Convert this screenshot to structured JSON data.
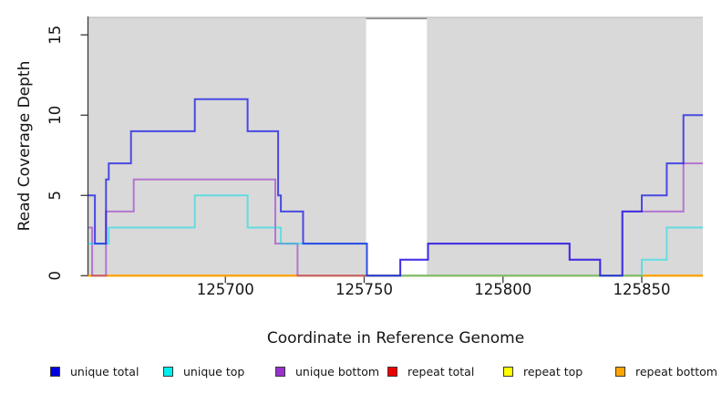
{
  "chart_data": {
    "type": "line",
    "subtype": "step-post",
    "title": "",
    "xlabel": "Coordinate in Reference Genome",
    "ylabel": "Read Coverage Depth",
    "xlim": [
      125650.5,
      125872
    ],
    "ylim": [
      0,
      16.15
    ],
    "xticks": [
      125700,
      125750,
      125800,
      125850
    ],
    "yticks": [
      0,
      5,
      10,
      15
    ],
    "grid": false,
    "background_color": "#ffffff",
    "shaded_region_color": "#d9d9d9",
    "shaded_regions": [
      [
        125650.5,
        125750.7
      ],
      [
        125772.6,
        125872
      ]
    ],
    "gap_region": [
      125750.7,
      125772.6
    ],
    "series": [
      {
        "name": "repeat total",
        "color": "#e60000",
        "opacity": 0.9,
        "points": [
          [
            125650.5,
            0
          ]
        ]
      },
      {
        "name": "repeat top",
        "color": "#f5f500",
        "opacity": 0.95,
        "points": [
          [
            125650.5,
            0
          ]
        ]
      },
      {
        "name": "repeat bottom",
        "color": "#ff9d00",
        "opacity": 0.95,
        "points": [
          [
            125650.5,
            0
          ]
        ]
      },
      {
        "name": "unique bottom",
        "color": "#9932cc",
        "opacity": 0.6,
        "points": [
          [
            125650.5,
            3
          ],
          [
            125652,
            0
          ],
          [
            125657,
            4
          ],
          [
            125667,
            6
          ],
          [
            125718,
            2
          ],
          [
            125726,
            0
          ],
          [
            125763,
            1
          ],
          [
            125773,
            2
          ],
          [
            125824,
            1
          ],
          [
            125835,
            0
          ],
          [
            125843,
            4
          ],
          [
            125865,
            7
          ]
        ]
      },
      {
        "name": "unique top",
        "color": "#00dfe8",
        "opacity": 0.55,
        "points": [
          [
            125650.5,
            2
          ],
          [
            125658,
            3
          ],
          [
            125689,
            5
          ],
          [
            125708,
            3
          ],
          [
            125720,
            2
          ],
          [
            125751,
            0
          ],
          [
            125850,
            1
          ],
          [
            125859,
            3
          ]
        ]
      },
      {
        "name": "unique total",
        "color": "#1010e8",
        "opacity": 0.72,
        "points": [
          [
            125650.5,
            5
          ],
          [
            125653,
            2
          ],
          [
            125657,
            6
          ],
          [
            125658,
            7
          ],
          [
            125666,
            9
          ],
          [
            125689,
            11
          ],
          [
            125708,
            9
          ],
          [
            125719,
            5
          ],
          [
            125720,
            4
          ],
          [
            125728,
            2
          ],
          [
            125751,
            0
          ],
          [
            125763,
            1
          ],
          [
            125773,
            2
          ],
          [
            125824,
            1
          ],
          [
            125835,
            0
          ],
          [
            125843,
            4
          ],
          [
            125850,
            5
          ],
          [
            125859,
            7
          ],
          [
            125865,
            10
          ]
        ]
      }
    ],
    "legend": [
      {
        "label": "unique total",
        "color": "#0000e0"
      },
      {
        "label": "unique top",
        "color": "#00eeee"
      },
      {
        "label": "unique bottom",
        "color": "#9932cc"
      },
      {
        "label": "repeat total",
        "color": "#ee0000"
      },
      {
        "label": "repeat top",
        "color": "#ffff00"
      },
      {
        "label": "repeat bottom",
        "color": "#ffa500"
      }
    ],
    "legend_position": "bottom"
  }
}
